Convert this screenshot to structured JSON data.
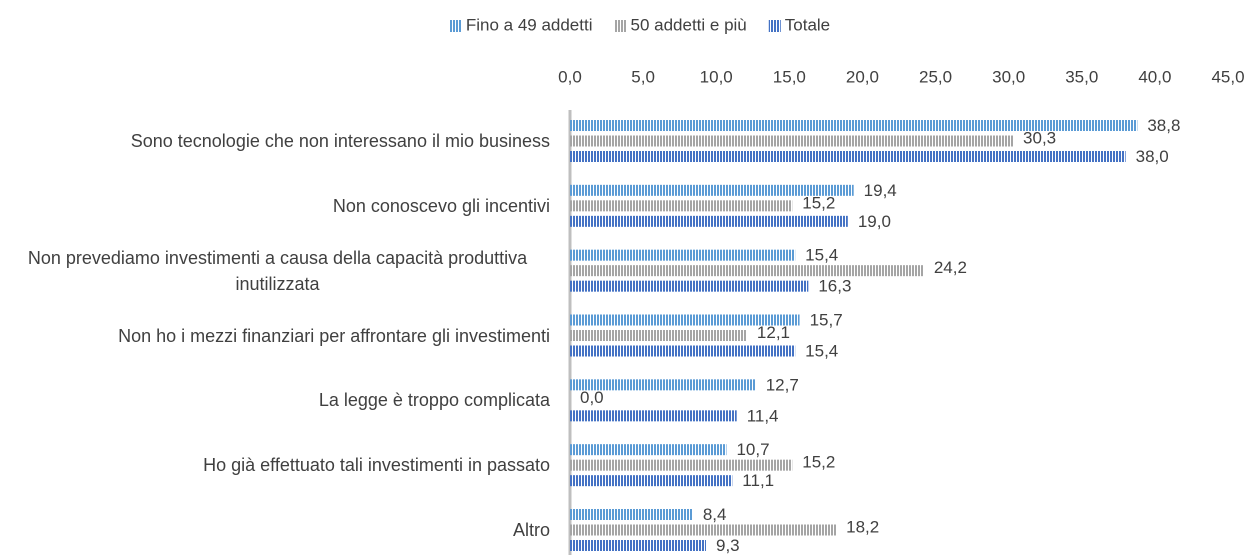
{
  "chart_data": {
    "type": "bar",
    "orientation": "horizontal",
    "categories": [
      "Sono tecnologie che non interessano il mio business",
      "Non conoscevo gli incentivi",
      "Non prevediamo investimenti a causa della capacità produttiva inutilizzata",
      "Non ho i mezzi finanziari per affrontare gli investimenti",
      "La legge è troppo complicata",
      "Ho già effettuato tali investimenti in passato",
      "Altro"
    ],
    "series": [
      {
        "name": "Fino a 49 addetti",
        "color": "#5b9bd5",
        "values": [
          38.8,
          19.4,
          15.4,
          15.7,
          12.7,
          10.7,
          8.4
        ],
        "value_labels": [
          "38,8",
          "19,4",
          "15,4",
          "15,7",
          "12,7",
          "10,7",
          "8,4"
        ]
      },
      {
        "name": "50 addetti e più",
        "color": "#a5a5a5",
        "values": [
          30.3,
          15.2,
          24.2,
          12.1,
          0.0,
          15.2,
          18.2
        ],
        "value_labels": [
          "30,3",
          "15,2",
          "24,2",
          "12,1",
          "0,0",
          "15,2",
          "18,2"
        ]
      },
      {
        "name": "Totale",
        "color": "#4472c4",
        "values": [
          38.0,
          19.0,
          16.3,
          15.4,
          11.4,
          11.1,
          9.3
        ],
        "value_labels": [
          "38,0",
          "19,0",
          "16,3",
          "15,4",
          "11,4",
          "11,1",
          "9,3"
        ]
      }
    ],
    "xlim": [
      0,
      45
    ],
    "xticks": [
      {
        "value": 0,
        "label": "0,0"
      },
      {
        "value": 5,
        "label": "5,0"
      },
      {
        "value": 10,
        "label": "10,0"
      },
      {
        "value": 15,
        "label": "15,0"
      },
      {
        "value": 20,
        "label": "20,0"
      },
      {
        "value": 25,
        "label": "25,0"
      },
      {
        "value": 30,
        "label": "30,0"
      },
      {
        "value": 35,
        "label": "35,0"
      },
      {
        "value": 40,
        "label": "40,0"
      },
      {
        "value": 45,
        "label": "45,0"
      }
    ],
    "grid": false,
    "legend": "top"
  }
}
